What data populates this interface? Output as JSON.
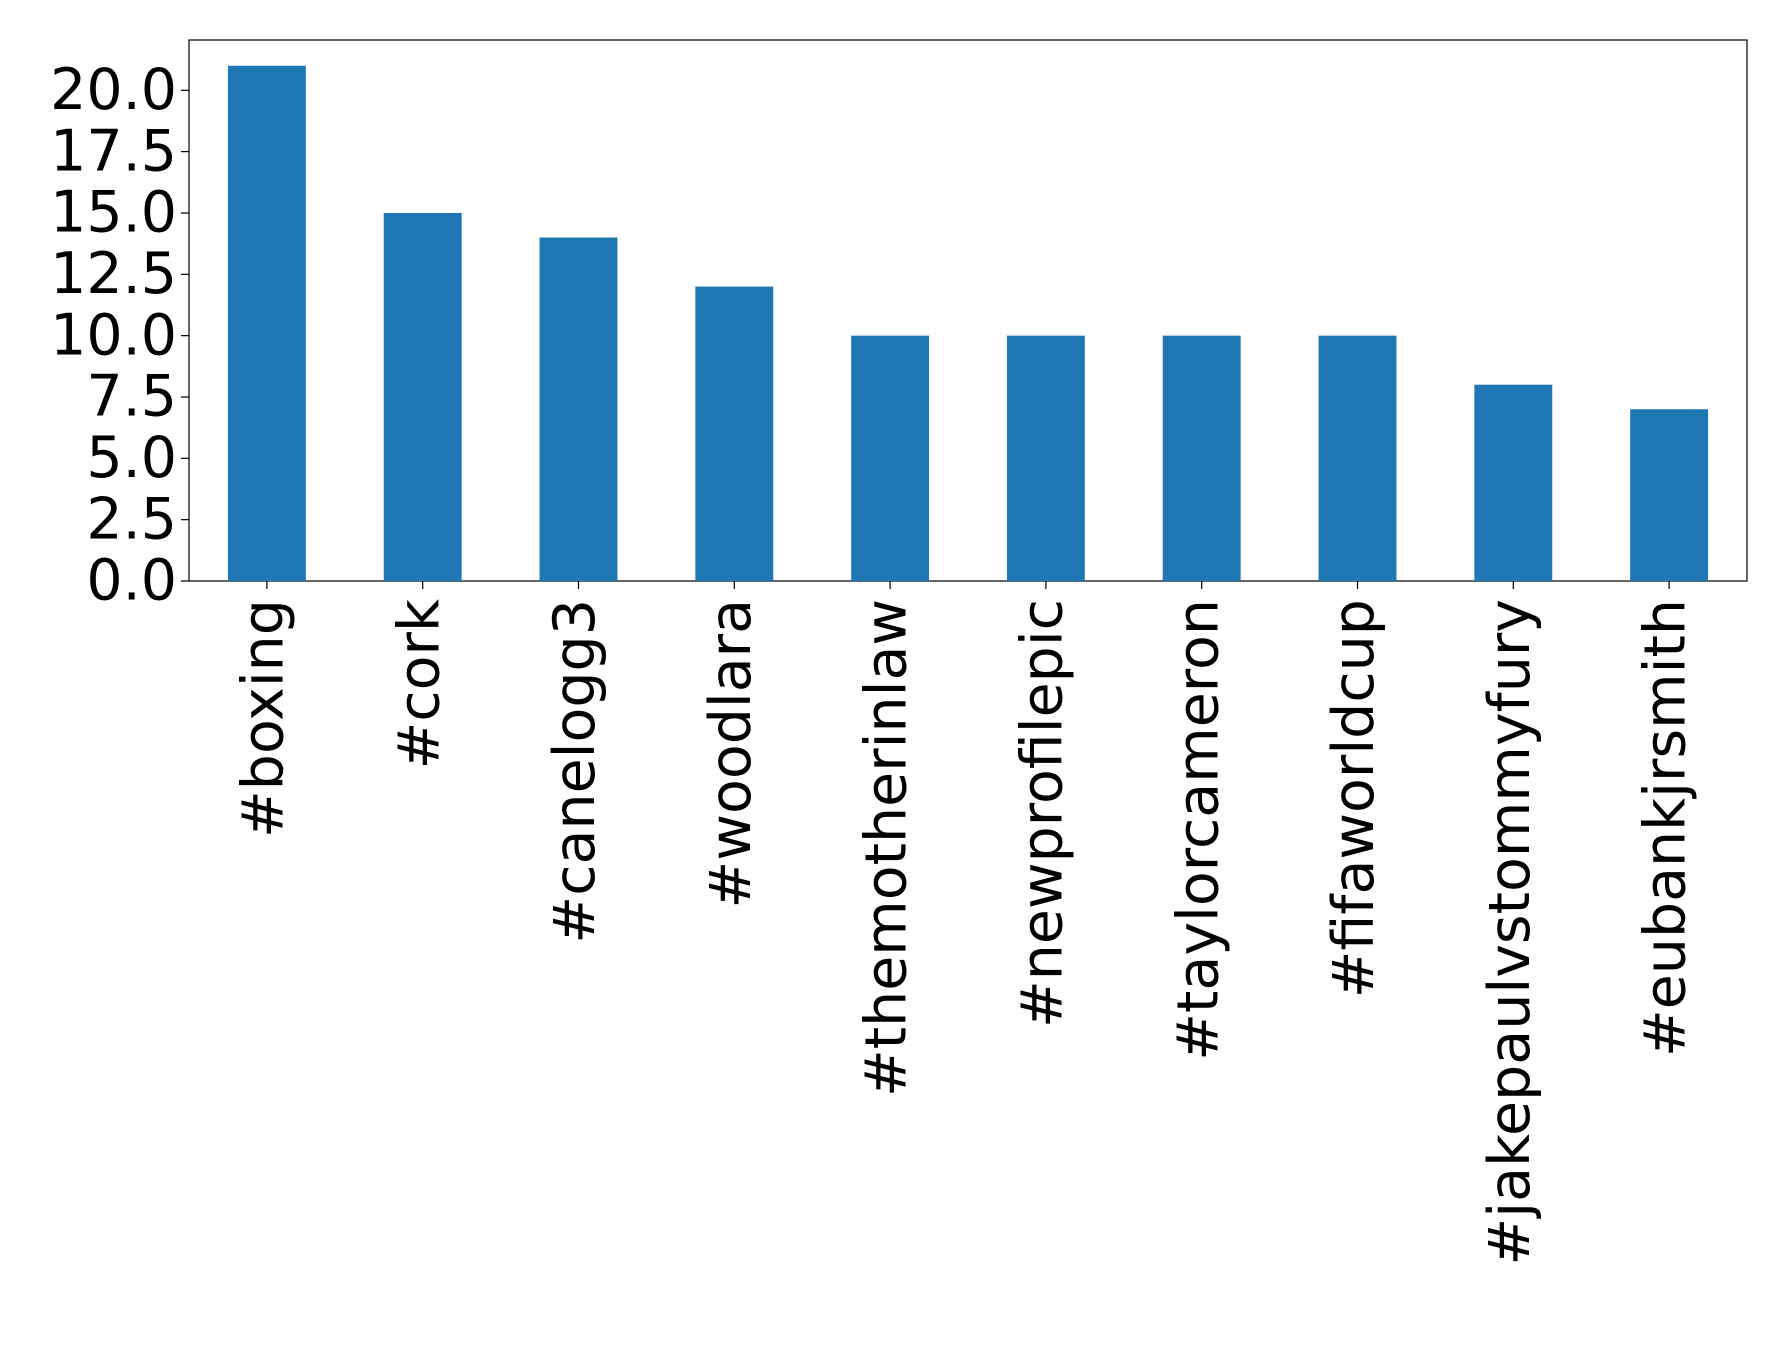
{
  "chart_data": {
    "type": "bar",
    "categories": [
      "#boxing",
      "#cork",
      "#canelogg3",
      "#woodlara",
      "#themotherinlaw",
      "#newprofilepic",
      "#taylorcameron",
      "#fifaworldcup",
      "#jakepaulvstommyfury",
      "#eubankjrsmith"
    ],
    "values": [
      21,
      15,
      14,
      12,
      10,
      10,
      10,
      10,
      8,
      7
    ],
    "color": "#1f77b4",
    "ylim": [
      0,
      22.05
    ],
    "yticks": [
      {
        "value": 0,
        "label": "0.0"
      },
      {
        "value": 2.5,
        "label": "2.5"
      },
      {
        "value": 5,
        "label": "5.0"
      },
      {
        "value": 7.5,
        "label": "7.5"
      },
      {
        "value": 10,
        "label": "10.0"
      },
      {
        "value": 12.5,
        "label": "12.5"
      },
      {
        "value": 15,
        "label": "15.0"
      },
      {
        "value": 17.5,
        "label": "17.5"
      },
      {
        "value": 20,
        "label": "20.0"
      }
    ],
    "grid": false
  }
}
